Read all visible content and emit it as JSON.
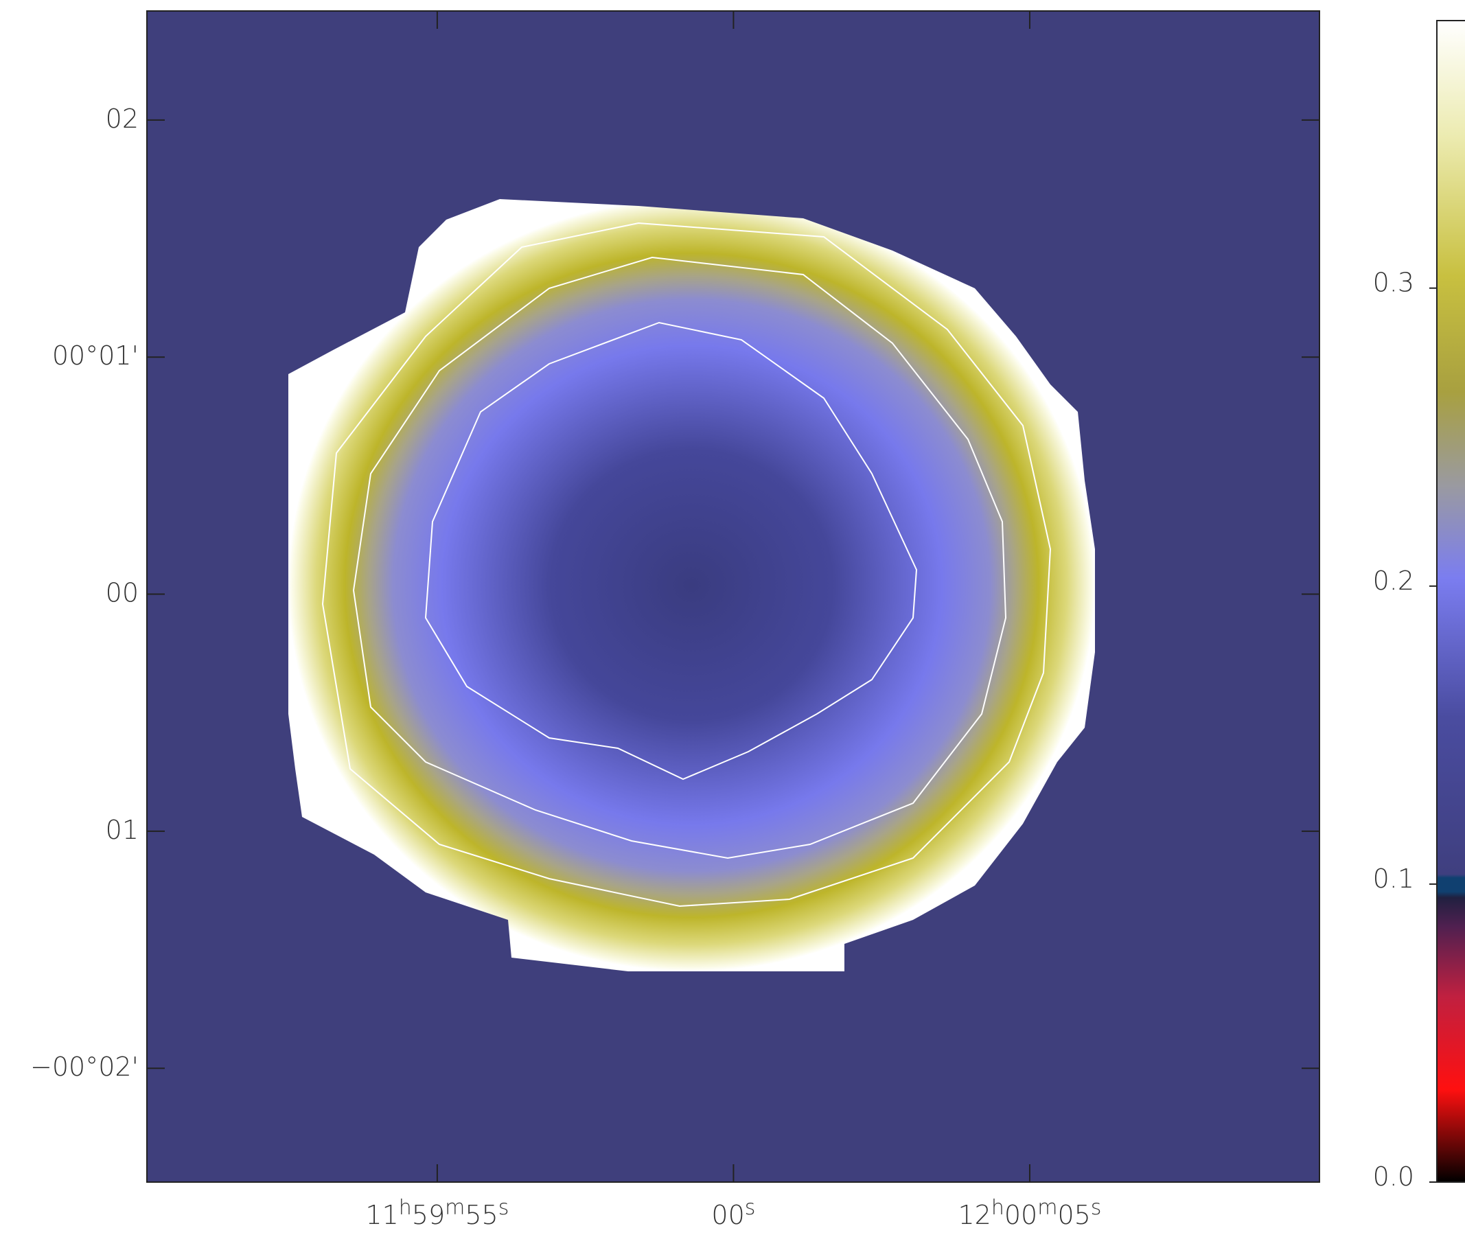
{
  "chart_data": {
    "type": "image",
    "xlim": [
      -9.9,
      9.89
    ],
    "ylim": [
      -2.48,
      2.46
    ],
    "xticks": [
      {
        "value": -5,
        "label": "11h59m55s"
      },
      {
        "value": 0,
        "label": "00s"
      },
      {
        "value": 5,
        "label": "12h00m05s"
      }
    ],
    "yticks": [
      {
        "value": 2,
        "label": "02"
      },
      {
        "value": 1,
        "label": "00°01'"
      },
      {
        "value": 0,
        "label": "00"
      },
      {
        "value": -1,
        "label": "01"
      },
      {
        "value": -2,
        "label": "−00°02'"
      }
    ],
    "colorbar": {
      "lim": [
        0,
        0.393
      ],
      "ticks": [
        {
          "value": 0,
          "label": "0.0"
        },
        0.1,
        0.2,
        0.3
      ]
    }
  }
}
